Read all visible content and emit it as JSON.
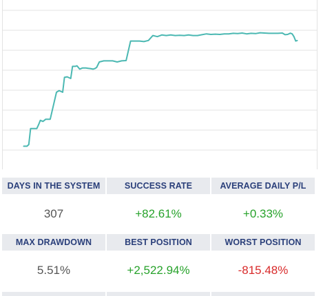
{
  "chart_data": {
    "type": "line",
    "title": "",
    "xlabel": "",
    "ylabel": "",
    "grid": true,
    "color": "#4bb8b2",
    "xlim": [
      0,
      307
    ],
    "ylim": [
      0,
      2600
    ],
    "x": [
      0,
      4,
      6,
      8,
      15,
      17,
      19,
      22,
      25,
      28,
      30,
      37,
      40,
      44,
      46,
      49,
      53,
      55,
      58,
      60,
      63,
      66,
      70,
      75,
      78,
      80,
      82,
      85,
      90,
      95,
      100,
      105,
      110,
      115,
      120,
      125,
      130,
      135,
      140,
      145,
      150,
      155,
      160,
      165,
      170,
      175,
      180,
      185,
      190,
      195,
      200,
      205,
      210,
      215,
      220,
      225,
      230,
      235,
      240,
      245,
      250,
      255,
      260,
      265,
      270,
      275,
      280,
      285,
      290,
      293,
      296,
      299,
      301,
      303,
      305,
      307
    ],
    "y": [
      70,
      70,
      100,
      390,
      390,
      460,
      540,
      520,
      560,
      560,
      560,
      1050,
      1080,
      1050,
      1320,
      1330,
      1300,
      1520,
      1520,
      1530,
      1470,
      1490,
      1490,
      1480,
      1470,
      1480,
      1500,
      1600,
      1620,
      1620,
      1620,
      1600,
      1620,
      1625,
      1980,
      1980,
      1980,
      1970,
      1990,
      2080,
      2060,
      2090,
      2080,
      2090,
      2080,
      2085,
      2080,
      2090,
      2080,
      2080,
      2095,
      2110,
      2100,
      2105,
      2100,
      2110,
      2110,
      2120,
      2115,
      2125,
      2110,
      2120,
      2115,
      2130,
      2125,
      2120,
      2120,
      2120,
      2125,
      2095,
      2100,
      2122,
      2110,
      2060,
      1980,
      1990
    ]
  },
  "stats": [
    {
      "label": "DAYS IN THE SYSTEM",
      "value": "307",
      "tone": "neutral"
    },
    {
      "label": "SUCCESS RATE",
      "value": "+82.61%",
      "tone": "pos"
    },
    {
      "label": "AVERAGE DAILY P/L",
      "value": "+0.33%",
      "tone": "pos"
    },
    {
      "label": "MAX DRAWDOWN",
      "value": "5.51%",
      "tone": "neutral"
    },
    {
      "label": "BEST POSITION",
      "value": "+2,522.94%",
      "tone": "pos"
    },
    {
      "label": "WORST POSITION",
      "value": "-815.48%",
      "tone": "neg"
    }
  ]
}
